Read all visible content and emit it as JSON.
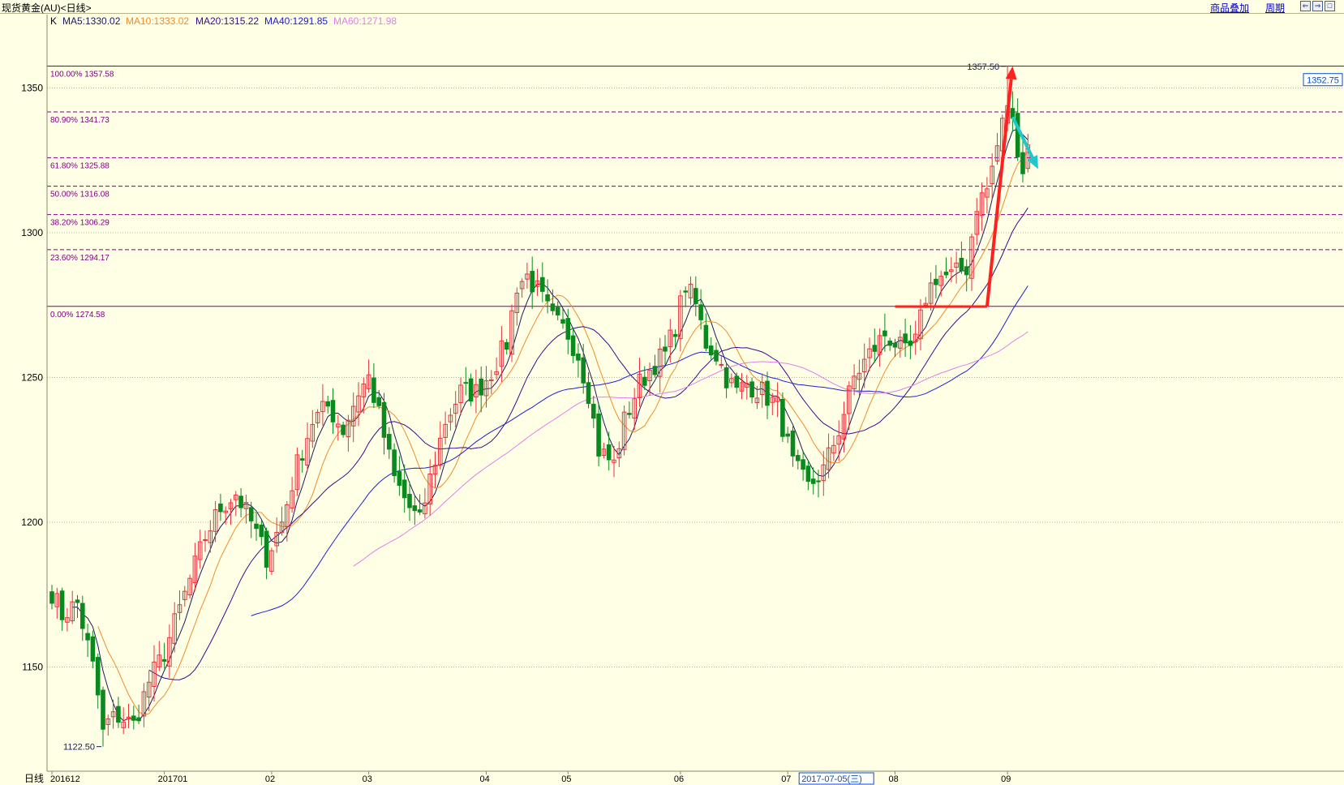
{
  "header": {
    "title": "现货黄金(AU)<日线>",
    "overlay_label": "商品叠加",
    "period_label": "周期",
    "nav_left": "⇐",
    "nav_right": "⇒",
    "nav_window": "□"
  },
  "legend": {
    "k_label": "K",
    "ma5": "MA5:1330.02",
    "ma10": "MA10:1333.02",
    "ma20": "MA20:1315.22",
    "ma40": "MA40:1291.85",
    "ma60": "MA60:1271.98"
  },
  "colors": {
    "background": "#ffffe6",
    "up": "#e8323c",
    "down": "#0a8a1e",
    "ma5": "#1a1a60",
    "ma10": "#f08c28",
    "ma20": "#3a0a8a",
    "ma40": "#2020d0",
    "ma60": "#e080e8",
    "fib": "#800080",
    "arrow_up": "#ff2020",
    "arrow_down": "#20c8c8",
    "current_price": "#0050d0"
  },
  "chart_data": {
    "type": "candlestick",
    "title": "现货黄金(AU)<日线>",
    "ylim": [
      1114,
      1372
    ],
    "y_ticks": [
      1150,
      1200,
      1250,
      1300,
      1350
    ],
    "grid": true,
    "x_axis_prefix": "日线",
    "x_month_labels": [
      "201612",
      "201701",
      "02",
      "03",
      "04",
      "05",
      "06",
      "07",
      "08",
      "09"
    ],
    "x_month_start_index": [
      0,
      22,
      43,
      62,
      85,
      101,
      123,
      144,
      165,
      187
    ],
    "cursor_date_label": "2017-07-05(三)",
    "current_price_label": "1352.75",
    "current_price": 1352.75,
    "high_label": "1357.50",
    "low_label": "1122.50",
    "fib_levels": [
      {
        "label": "100.00% 1357.58",
        "value": 1357.58
      },
      {
        "label": "80.90% 1341.73",
        "value": 1341.73
      },
      {
        "label": "61.80% 1325.88",
        "value": 1325.88
      },
      {
        "label": "50.00% 1316.08",
        "value": 1316.08
      },
      {
        "label": "38.20% 1306.29",
        "value": 1306.29
      },
      {
        "label": "23.60% 1294.17",
        "value": 1294.17
      },
      {
        "label": "0.00% 1274.58",
        "value": 1274.58
      }
    ],
    "close_anchors": [
      [
        0,
        1176
      ],
      [
        2,
        1168
      ],
      [
        5,
        1172
      ],
      [
        8,
        1150
      ],
      [
        10,
        1130
      ],
      [
        13,
        1133
      ],
      [
        16,
        1130
      ],
      [
        19,
        1145
      ],
      [
        22,
        1155
      ],
      [
        26,
        1175
      ],
      [
        30,
        1195
      ],
      [
        33,
        1205
      ],
      [
        36,
        1210
      ],
      [
        39,
        1200
      ],
      [
        42,
        1188
      ],
      [
        45,
        1200
      ],
      [
        48,
        1220
      ],
      [
        51,
        1235
      ],
      [
        54,
        1240
      ],
      [
        57,
        1232
      ],
      [
        60,
        1245
      ],
      [
        62,
        1250
      ],
      [
        64,
        1237
      ],
      [
        67,
        1215
      ],
      [
        70,
        1205
      ],
      [
        72,
        1200
      ],
      [
        74,
        1215
      ],
      [
        77,
        1235
      ],
      [
        80,
        1245
      ],
      [
        83,
        1245
      ],
      [
        86,
        1252
      ],
      [
        89,
        1262
      ],
      [
        91,
        1282
      ],
      [
        93,
        1285
      ],
      [
        95,
        1280
      ],
      [
        98,
        1270
      ],
      [
        101,
        1265
      ],
      [
        103,
        1258
      ],
      [
        105,
        1245
      ],
      [
        107,
        1225
      ],
      [
        110,
        1220
      ],
      [
        112,
        1235
      ],
      [
        115,
        1248
      ],
      [
        118,
        1255
      ],
      [
        120,
        1258
      ],
      [
        122,
        1268
      ],
      [
        124,
        1282
      ],
      [
        126,
        1275
      ],
      [
        128,
        1262
      ],
      [
        130,
        1258
      ],
      [
        132,
        1250
      ],
      [
        134,
        1245
      ],
      [
        136,
        1248
      ],
      [
        139,
        1245
      ],
      [
        142,
        1240
      ],
      [
        145,
        1220
      ],
      [
        148,
        1212
      ],
      [
        151,
        1218
      ],
      [
        154,
        1232
      ],
      [
        157,
        1250
      ],
      [
        160,
        1258
      ],
      [
        163,
        1265
      ],
      [
        165,
        1262
      ],
      [
        167,
        1258
      ],
      [
        169,
        1262
      ],
      [
        171,
        1278
      ],
      [
        173,
        1285
      ],
      [
        176,
        1285
      ],
      [
        179,
        1288
      ],
      [
        181,
        1310
      ],
      [
        183,
        1315
      ],
      [
        185,
        1330
      ],
      [
        187,
        1345
      ],
      [
        189,
        1330
      ],
      [
        190,
        1322
      ],
      [
        191,
        1330
      ]
    ],
    "high": {
      "index": 187,
      "value": 1357.5
    },
    "low": {
      "index": 10,
      "value": 1122.5
    },
    "ma_final": {
      "MA5": 1330.02,
      "MA10": 1333.02,
      "MA20": 1315.22,
      "MA40": 1291.85,
      "MA60": 1271.98
    },
    "support_line": {
      "value": 1274.5,
      "from_index": 165,
      "to_index": 183
    },
    "arrow_up": {
      "from": [
        183,
        1274.5
      ],
      "to": [
        188,
        1357.5
      ]
    },
    "arrow_down": {
      "from": [
        188,
        1340
      ],
      "to": [
        193,
        1322
      ]
    }
  }
}
